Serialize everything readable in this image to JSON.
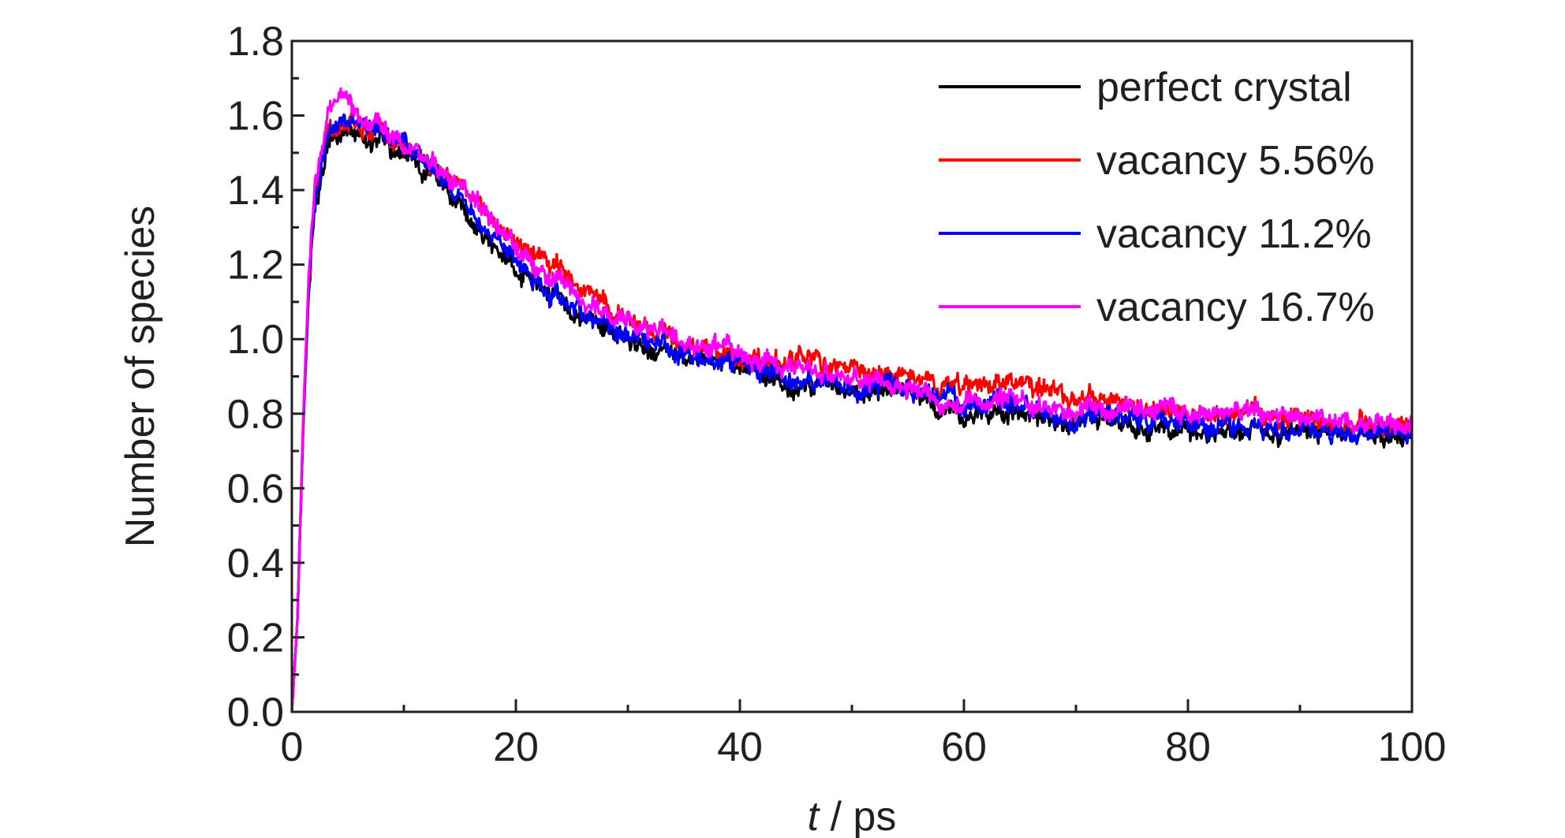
{
  "chart_data": {
    "type": "line",
    "title": "",
    "xlabel_italic": "t",
    "xlabel_rest": " / ps",
    "ylabel": "Number of species",
    "xlim": [
      0,
      100
    ],
    "ylim": [
      0.0,
      1.8
    ],
    "xticks": [
      0,
      20,
      40,
      60,
      80,
      100
    ],
    "xtick_labels": [
      "0",
      "20",
      "40",
      "60",
      "80",
      "100"
    ],
    "yticks": [
      0.0,
      0.2,
      0.4,
      0.6,
      0.8,
      1.0,
      1.2,
      1.4,
      1.6,
      1.8
    ],
    "ytick_labels": [
      "0.0",
      "0.2",
      "0.4",
      "0.6",
      "0.8",
      "1.0",
      "1.2",
      "1.4",
      "1.6",
      "1.8"
    ],
    "grid": false,
    "legend_position": "top-right",
    "series": [
      {
        "name": "perfect crystal",
        "color": "#000000",
        "x": [
          0,
          0.5,
          1,
          1.5,
          2,
          3,
          4,
          5,
          6,
          8,
          10,
          12,
          15,
          18,
          20,
          25,
          30,
          35,
          40,
          45,
          50,
          55,
          60,
          65,
          70,
          75,
          80,
          85,
          90,
          95,
          100
        ],
        "y": [
          0.0,
          0.25,
          0.75,
          1.12,
          1.33,
          1.5,
          1.55,
          1.56,
          1.55,
          1.52,
          1.5,
          1.45,
          1.35,
          1.26,
          1.2,
          1.07,
          1.0,
          0.95,
          0.93,
          0.87,
          0.86,
          0.84,
          0.8,
          0.8,
          0.78,
          0.77,
          0.76,
          0.75,
          0.75,
          0.75,
          0.74
        ]
      },
      {
        "name": "vacancy 5.56%",
        "color": "#ff0000",
        "x": [
          0,
          0.5,
          1,
          1.5,
          2,
          3,
          4,
          5,
          6,
          8,
          10,
          12,
          15,
          18,
          20,
          25,
          30,
          35,
          40,
          45,
          50,
          55,
          60,
          65,
          70,
          75,
          80,
          85,
          90,
          95,
          100
        ],
        "y": [
          0.0,
          0.25,
          0.76,
          1.14,
          1.36,
          1.54,
          1.58,
          1.59,
          1.58,
          1.56,
          1.53,
          1.48,
          1.4,
          1.33,
          1.26,
          1.15,
          1.05,
          0.98,
          0.93,
          0.95,
          0.91,
          0.89,
          0.87,
          0.88,
          0.84,
          0.82,
          0.8,
          0.8,
          0.78,
          0.77,
          0.77
        ]
      },
      {
        "name": "vacancy 11.2%",
        "color": "#0000ff",
        "x": [
          0,
          0.5,
          1,
          1.5,
          2,
          3,
          4,
          5,
          6,
          8,
          10,
          12,
          15,
          18,
          20,
          25,
          30,
          35,
          40,
          45,
          50,
          55,
          60,
          65,
          70,
          75,
          80,
          85,
          90,
          95,
          100
        ],
        "y": [
          0.0,
          0.25,
          0.76,
          1.14,
          1.35,
          1.53,
          1.58,
          1.59,
          1.58,
          1.56,
          1.53,
          1.48,
          1.37,
          1.28,
          1.2,
          1.09,
          1.01,
          0.96,
          0.93,
          0.89,
          0.87,
          0.86,
          0.83,
          0.82,
          0.79,
          0.78,
          0.77,
          0.76,
          0.76,
          0.75,
          0.75
        ]
      },
      {
        "name": "vacancy 16.7%",
        "color": "#ff00ff",
        "x": [
          0,
          0.5,
          1,
          1.5,
          2,
          3,
          4,
          5,
          6,
          8,
          10,
          12,
          15,
          18,
          20,
          25,
          30,
          35,
          40,
          45,
          50,
          55,
          60,
          65,
          70,
          75,
          80,
          85,
          90,
          95,
          100
        ],
        "y": [
          0.0,
          0.25,
          0.78,
          1.17,
          1.4,
          1.6,
          1.66,
          1.64,
          1.61,
          1.57,
          1.53,
          1.48,
          1.41,
          1.32,
          1.24,
          1.12,
          1.05,
          0.99,
          0.94,
          0.92,
          0.89,
          0.86,
          0.83,
          0.83,
          0.81,
          0.81,
          0.8,
          0.81,
          0.79,
          0.77,
          0.77
        ]
      }
    ]
  }
}
